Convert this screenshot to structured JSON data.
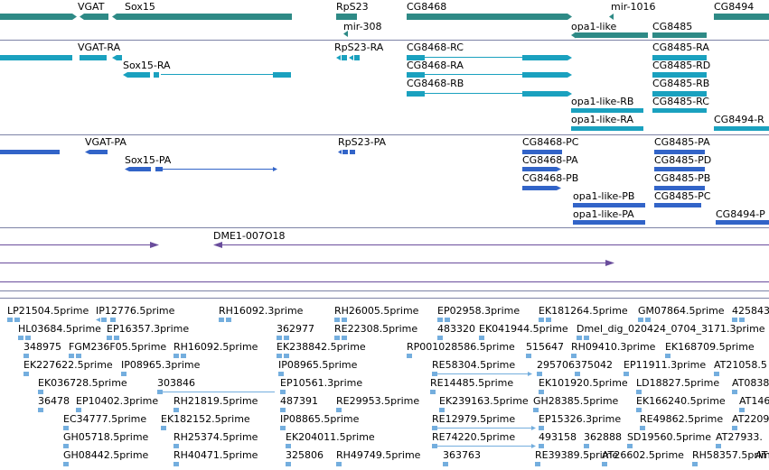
{
  "colors": {
    "gene": "#2e8a86",
    "transcript": "#1aa1bf",
    "protein": "#3264c8",
    "alignment": "#6a4d9c",
    "est": "#74aede",
    "separator": "#7d83a6"
  },
  "gene_track": {
    "labels": [
      "VGAT",
      "Sox15",
      "RpS23",
      "mir-308",
      "CG8468",
      "mir-1016",
      "opa1-like",
      "CG8485",
      "CG8494"
    ]
  },
  "transcript_track": {
    "labels": [
      "VGAT-RA",
      "Sox15-RA",
      "RpS23-RA",
      "CG8468-RC",
      "CG8468-RA",
      "CG8468-RB",
      "CG8485-RA",
      "CG8485-RD",
      "CG8485-RB",
      "opa1-like-RB",
      "CG8485-RC",
      "opa1-like-RA",
      "CG8494-R"
    ]
  },
  "protein_track": {
    "labels": [
      "VGAT-PA",
      "Sox15-PA",
      "RpS23-PA",
      "CG8468-PC",
      "CG8485-PA",
      "CG8468-PA",
      "CG8485-PD",
      "CG8468-PB",
      "CG8485-PB",
      "opa1-like-PB",
      "CG8485-PC",
      "opa1-like-PA",
      "CG8494-P"
    ]
  },
  "alignment_track": {
    "labels": [
      "DME1-007O18"
    ]
  },
  "est_track": {
    "labels": [
      "LP21504.5prime",
      "IP12776.5prime",
      "RH16092.3prime",
      "RH26005.5prime",
      "EP02958.3prime",
      "EK181264.5prime",
      "GM07864.5prime",
      "425843",
      "HL03684.5prime",
      "EP16357.3prime",
      "362977",
      "RE22308.5prime",
      "483320",
      "EK041944.5prime",
      "Dmel_dig_020424_0704_3171.3prime",
      "348975",
      "FGM236F05.5prime",
      "RH16092.5prime",
      "EK238842.5prime",
      "RP001028586.5prime",
      "515647",
      "RH09410.3prime",
      "EK168709.5prime",
      "EK227622.5prime",
      "IP08965.3prime",
      "IP08965.5prime",
      "RE58304.5prime",
      "295706",
      "375042",
      "EP11911.3prime",
      "AT21058.5",
      "EK036728.5prime",
      "303846",
      "EP10561.3prime",
      "RE14485.5prime",
      "EK101920.5prime",
      "LD18827.5prime",
      "AT0838",
      "36478",
      "EP10402.3prime",
      "RH21819.5prime",
      "487391",
      "RE29953.5prime",
      "EK239163.5prime",
      "GH28385.5prime",
      "EK166240.5prime",
      "AT146",
      "EC34777.5prime",
      "EK182152.5prime",
      "IP08865.5prime",
      "RE12979.5prime",
      "EP15326.3prime",
      "RE49862.5prime",
      "AT22092.",
      "GH05718.5prime",
      "RH25374.5prime",
      "EK204011.5prime",
      "RE74220.5prime",
      "493158",
      "362888",
      "SD19560.5prime",
      "AT27933.",
      "GH08442.5prime",
      "RH40471.5prime",
      "325806",
      "RH49749.5prime",
      "363763",
      "RE39389.5prime",
      "AT26602.5prime",
      "RH58357.5prime",
      "AT"
    ]
  }
}
